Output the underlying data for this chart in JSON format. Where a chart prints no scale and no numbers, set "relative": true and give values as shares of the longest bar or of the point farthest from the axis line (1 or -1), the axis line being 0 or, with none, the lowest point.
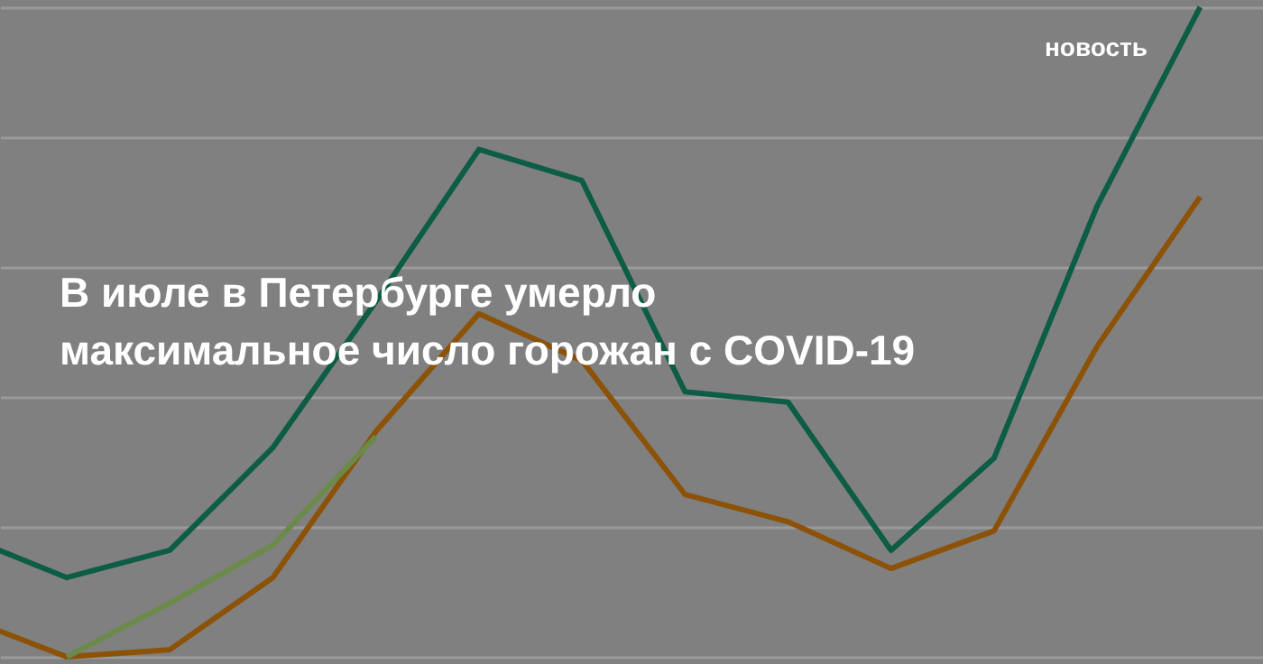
{
  "chart_data": {
    "type": "line",
    "relative": true,
    "title": "В июле в Петербурге умерло\nмаксимальное число горожан с COVID-19",
    "annotations": [
      "новость"
    ],
    "grid": "y",
    "marker": "none",
    "line_style": "solid",
    "categories": [
      null,
      null,
      null,
      null,
      null,
      null,
      null,
      null,
      null,
      null,
      null,
      null,
      null
    ],
    "series": [
      {
        "color": "#0d5c45",
        "values": [
          0.186,
          0.122,
          0.164,
          0.322,
          0.547,
          0.781,
          0.733,
          0.408,
          0.392,
          0.164,
          0.306,
          0.694,
          1
        ]
      },
      {
        "color": "#8b5208",
        "values": [
          0.061,
          0,
          0.011,
          0.122,
          0.347,
          0.528,
          0.456,
          0.25,
          0.208,
          0.136,
          0.194,
          0.478,
          0.708
        ]
      },
      {
        "color": "#6b8a4a",
        "values": [
          null,
          0,
          0.083,
          0.172,
          0.339,
          null,
          null,
          null,
          null,
          null,
          null,
          null,
          null
        ]
      }
    ]
  }
}
